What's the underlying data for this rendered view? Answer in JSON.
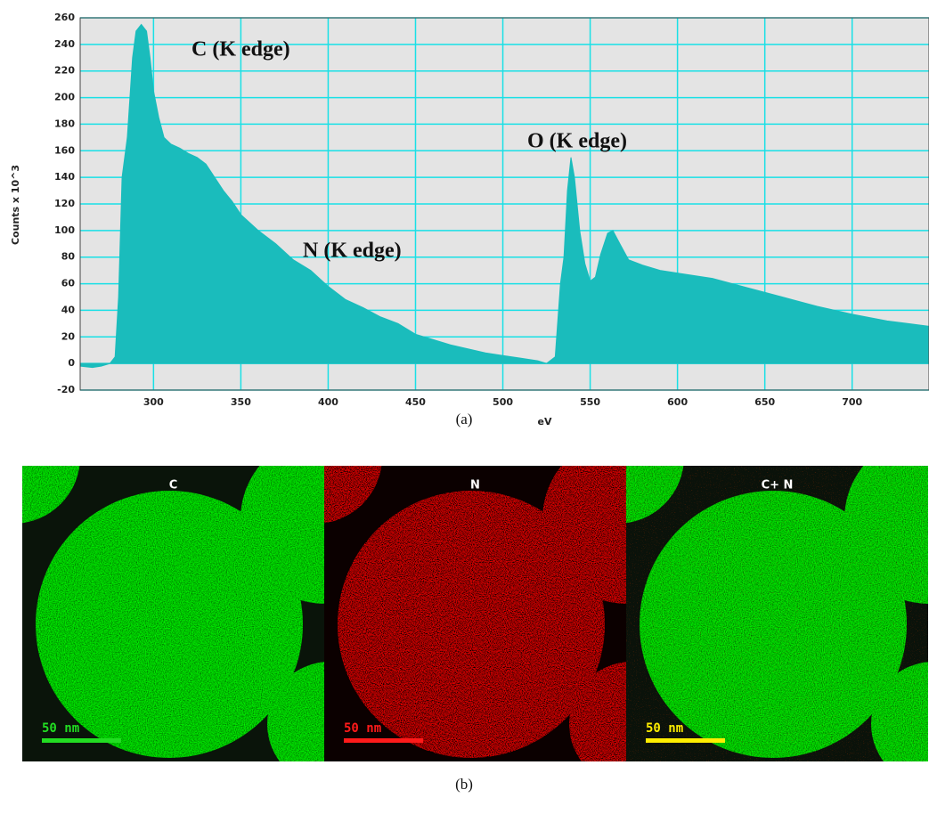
{
  "chart_data": {
    "type": "area",
    "xlabel": "eV",
    "ylabel": "Counts x 10^3",
    "x": [
      258,
      265,
      270,
      275,
      278,
      280,
      282,
      285,
      288,
      290,
      293,
      296,
      298,
      300,
      303,
      306,
      310,
      315,
      320,
      325,
      330,
      335,
      340,
      345,
      350,
      360,
      370,
      380,
      390,
      400,
      410,
      420,
      430,
      440,
      450,
      460,
      470,
      480,
      490,
      500,
      510,
      520,
      525,
      530,
      533,
      535,
      537,
      539,
      541,
      544,
      547,
      550,
      553,
      556,
      560,
      563,
      567,
      572,
      580,
      590,
      600,
      620,
      640,
      660,
      680,
      700,
      720,
      744
    ],
    "values": [
      -2,
      -3,
      -2,
      0,
      5,
      50,
      140,
      170,
      230,
      250,
      255,
      250,
      230,
      205,
      185,
      170,
      165,
      162,
      158,
      155,
      150,
      140,
      130,
      122,
      112,
      100,
      90,
      78,
      70,
      58,
      48,
      42,
      35,
      30,
      22,
      18,
      14,
      11,
      8,
      6,
      4,
      2,
      0,
      5,
      60,
      80,
      130,
      155,
      140,
      100,
      75,
      62,
      65,
      82,
      98,
      100,
      90,
      78,
      74,
      70,
      68,
      64,
      57,
      50,
      43,
      37,
      32,
      28
    ],
    "color": "#1abcbc",
    "xlim": [
      258,
      744
    ],
    "xticks": [
      300,
      350,
      400,
      450,
      500,
      550,
      600,
      650,
      700
    ],
    "ylim": [
      -20,
      260
    ],
    "yticks": [
      -20,
      0,
      20,
      40,
      60,
      80,
      100,
      120,
      140,
      160,
      180,
      200,
      220,
      240,
      260
    ],
    "grid": true,
    "annotations": [
      "C (K edge)",
      "N (K edge)",
      "O (K edge)"
    ]
  },
  "figure": {
    "label_a": "(a)",
    "label_b": "(b)"
  },
  "maps": [
    {
      "label": "C",
      "scale_bar": "50 nm"
    },
    {
      "label": "N",
      "scale_bar": "50 nm"
    },
    {
      "label": "C+ N",
      "scale_bar": "50 nm"
    }
  ]
}
